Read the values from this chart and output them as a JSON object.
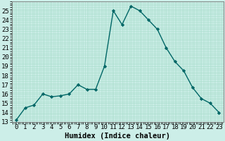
{
  "x": [
    0,
    1,
    2,
    3,
    4,
    5,
    6,
    7,
    8,
    9,
    10,
    11,
    12,
    13,
    14,
    15,
    16,
    17,
    18,
    19,
    20,
    21,
    22,
    23
  ],
  "y": [
    13.2,
    14.5,
    14.8,
    16.0,
    15.7,
    15.8,
    16.0,
    17.0,
    16.5,
    16.5,
    19.0,
    25.0,
    23.5,
    25.5,
    25.0,
    24.0,
    23.0,
    21.0,
    19.5,
    18.5,
    16.7,
    15.5,
    15.0,
    14.0
  ],
  "line_color": "#006666",
  "marker": "D",
  "marker_size": 2.2,
  "bg_color": "#cceee8",
  "grid_color": "#aaddcc",
  "xlabel": "Humidex (Indice chaleur)",
  "ylim": [
    13,
    26
  ],
  "xlim": [
    -0.5,
    23.5
  ],
  "yticks": [
    13,
    14,
    15,
    16,
    17,
    18,
    19,
    20,
    21,
    22,
    23,
    24,
    25
  ],
  "xtick_labels": [
    "0",
    "1",
    "2",
    "3",
    "4",
    "5",
    "6",
    "7",
    "8",
    "9",
    "10",
    "11",
    "12",
    "13",
    "14",
    "15",
    "16",
    "17",
    "18",
    "19",
    "20",
    "21",
    "22",
    "23"
  ],
  "label_fontsize": 7.5,
  "tick_fontsize": 6.5
}
